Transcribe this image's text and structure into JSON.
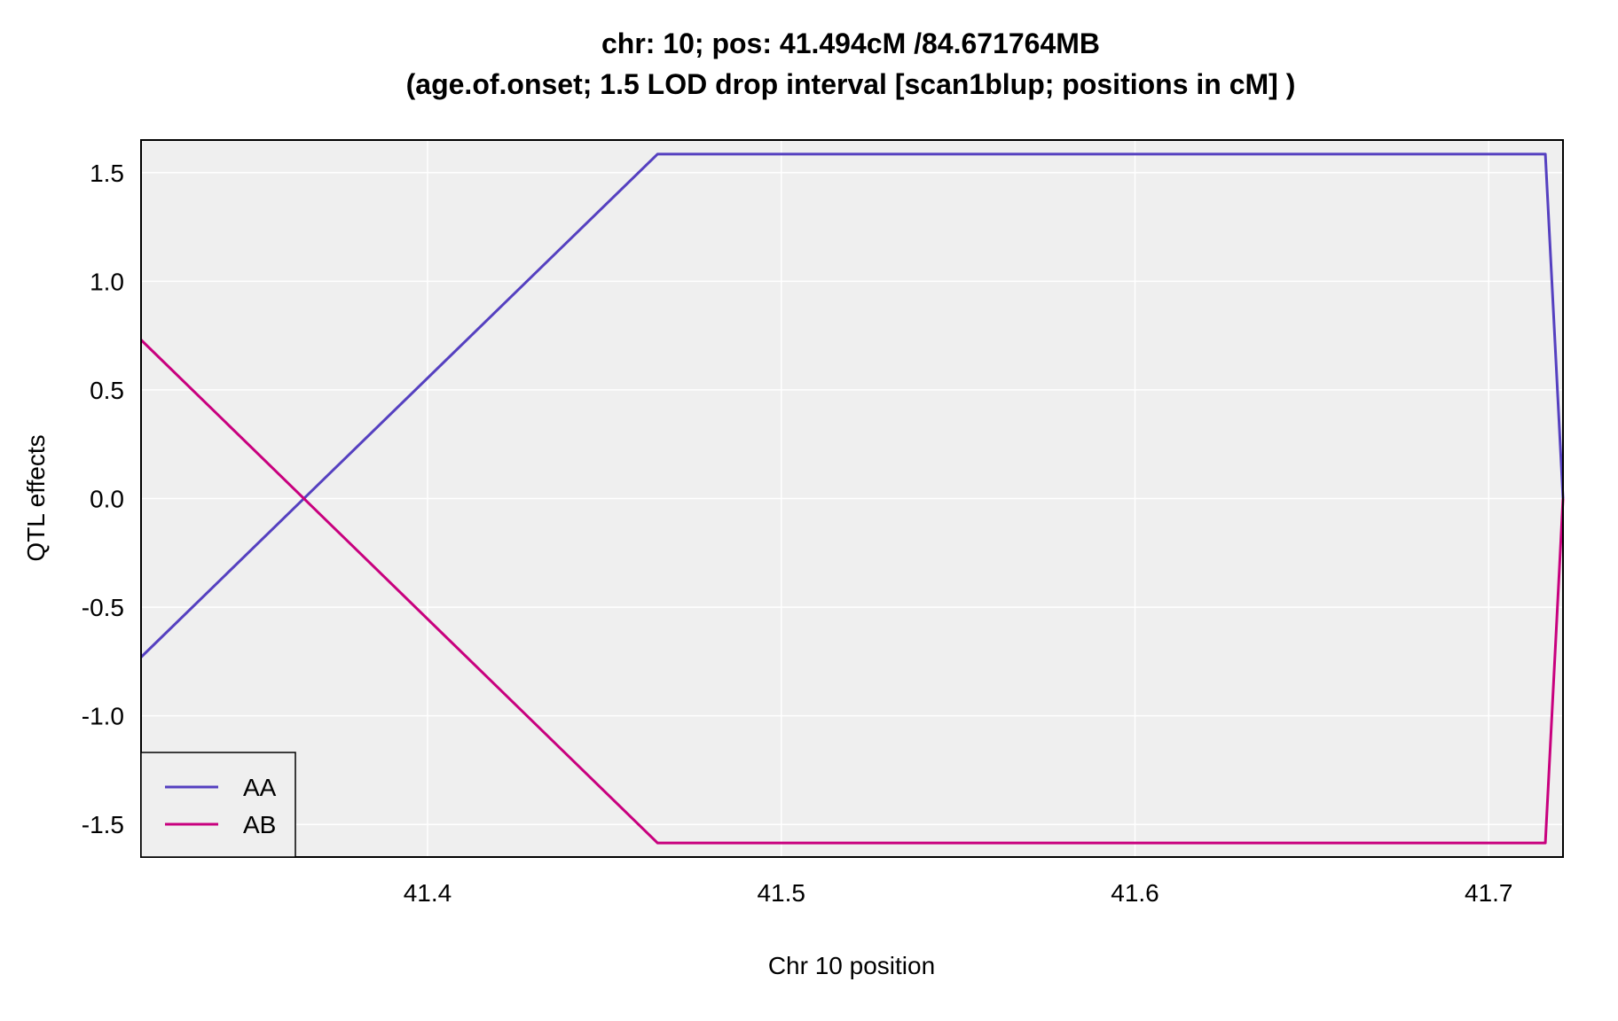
{
  "chart_data": {
    "type": "line",
    "title": "chr: 10; pos: 41.494cM /84.671764MB",
    "subtitle": "(age.of.onset; 1.5 LOD drop interval [scan1blup; positions in cM] )",
    "xlabel": "Chr 10 position",
    "ylabel": "QTL effects",
    "xlim": [
      41.319,
      41.721
    ],
    "ylim": [
      -1.65,
      1.65
    ],
    "x_ticks": [
      41.4,
      41.5,
      41.6,
      41.7
    ],
    "x_tick_labels": [
      "41.4",
      "41.5",
      "41.6",
      "41.7"
    ],
    "y_ticks": [
      1.5,
      1.0,
      0.5,
      0.0,
      -0.5,
      -1.0,
      -1.5
    ],
    "y_tick_labels": [
      "1.5",
      "1.0",
      "0.5",
      "0.0",
      "-0.5",
      "-1.0",
      "-1.5"
    ],
    "grid": true,
    "legend_position": "bottom-left",
    "background": "#efefef",
    "series": [
      {
        "name": "AA",
        "color": "#5540c0",
        "x": [
          41.319,
          41.465,
          41.716,
          41.721
        ],
        "y": [
          -0.73,
          1.585,
          1.585,
          0.0
        ]
      },
      {
        "name": "AB",
        "color": "#c8007e",
        "x": [
          41.319,
          41.465,
          41.716,
          41.721
        ],
        "y": [
          0.73,
          -1.585,
          -1.585,
          0.0
        ]
      }
    ]
  }
}
